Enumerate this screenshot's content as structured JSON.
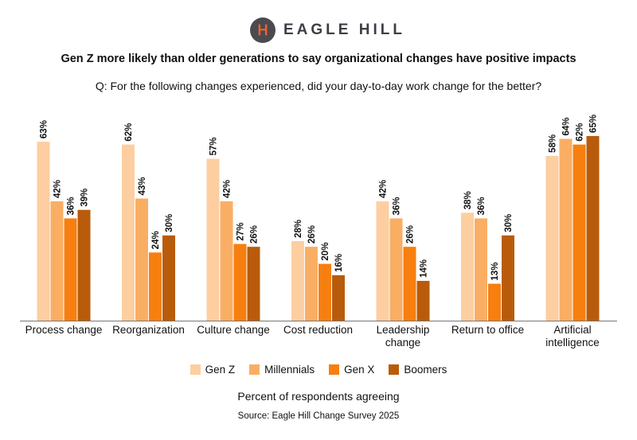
{
  "brand": {
    "name": "EAGLE HILL"
  },
  "chart_data": {
    "type": "bar",
    "title": "Gen Z more likely than older generations to say organizational changes have positive impacts",
    "subtitle": "Q: For the following changes experienced, did your day-to-day work change for the better?",
    "categories": [
      [
        "Process change"
      ],
      [
        "Reorganization"
      ],
      [
        "Culture change"
      ],
      [
        "Cost reduction"
      ],
      [
        "Leadership",
        "change"
      ],
      [
        "Return to office"
      ],
      [
        "Artificial",
        "intelligence"
      ]
    ],
    "series": [
      {
        "name": "Gen Z",
        "color": "#FDCEA0",
        "values": [
          63,
          62,
          57,
          28,
          42,
          38,
          58
        ]
      },
      {
        "name": "Millennials",
        "color": "#F9AE64",
        "values": [
          42,
          43,
          42,
          26,
          36,
          36,
          64
        ]
      },
      {
        "name": "Gen X",
        "color": "#F77F0F",
        "values": [
          36,
          24,
          27,
          20,
          26,
          13,
          62
        ]
      },
      {
        "name": "Boomers",
        "color": "#B85C0C",
        "values": [
          39,
          30,
          26,
          16,
          14,
          30,
          65
        ]
      }
    ],
    "xlabel": "Percent of respondents agreeing",
    "ylabel": "",
    "ylim": [
      0,
      70
    ],
    "value_suffix": "%",
    "grid": false,
    "legend": "bottom-center",
    "source": "Source: Eagle Hill Change Survey 2025"
  }
}
